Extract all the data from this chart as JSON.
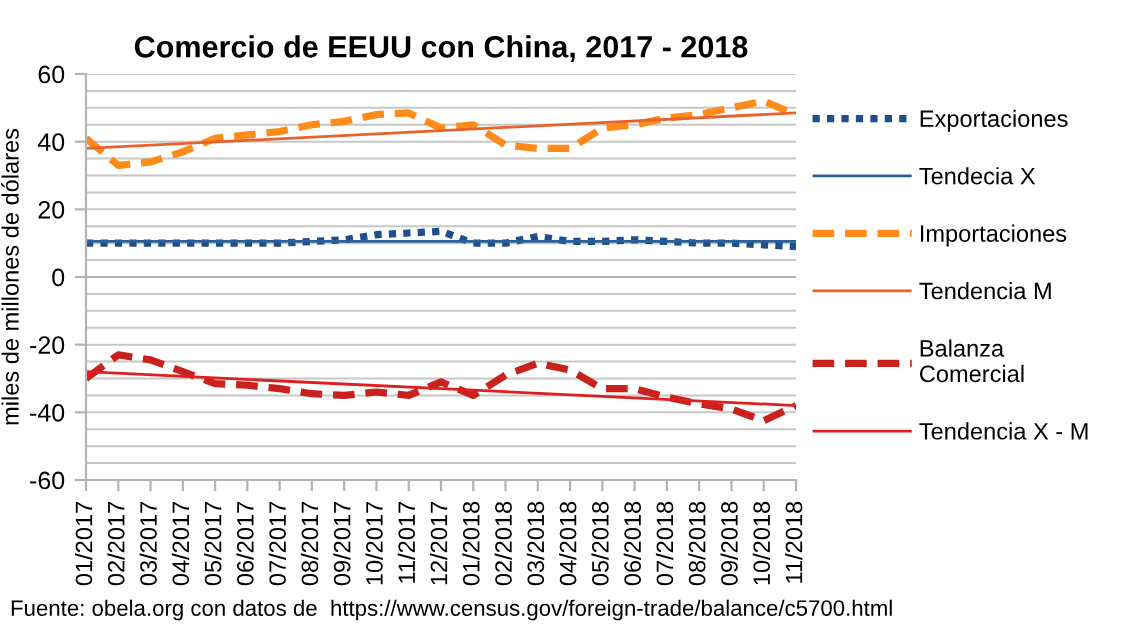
{
  "chart_data": {
    "type": "line",
    "title": "Comercio de EEUU con China, 2017 - 2018",
    "ylabel": "miles de millones de dólares",
    "categories": [
      "01/2017",
      "02/2017",
      "03/2017",
      "04/2017",
      "05/2017",
      "06/2017",
      "07/2017",
      "08/2017",
      "09/2017",
      "10/2017",
      "11/2017",
      "12/2017",
      "01/2018",
      "02/2018",
      "03/2018",
      "04/2018",
      "05/2018",
      "06/2018",
      "07/2018",
      "08/2018",
      "09/2018",
      "10/2018",
      "11/2018"
    ],
    "series": [
      {
        "name": "Exportaciones",
        "color": "#1f4e8c",
        "line_style": "dotted",
        "values": [
          10,
          10,
          10,
          10,
          10,
          10,
          10,
          10.5,
          11,
          12.5,
          13,
          13.5,
          10,
          10,
          12,
          10.5,
          10.5,
          11,
          10.5,
          10,
          10,
          9.5,
          9
        ]
      },
      {
        "name": "Tendecia X",
        "color": "#2a6099",
        "line_style": "solid",
        "x": [
          "01/2017",
          "11/2018"
        ],
        "values": [
          10.5,
          10.5
        ]
      },
      {
        "name": "Importaciones",
        "color": "#ff8c1a",
        "line_style": "dashed",
        "values": [
          41,
          33,
          34,
          37,
          41,
          42,
          43,
          45,
          46,
          48,
          48.5,
          44,
          45,
          39,
          38,
          38,
          44,
          45,
          47,
          48,
          50,
          52,
          48
        ]
      },
      {
        "name": "Tendencia M",
        "color": "#e8622c",
        "line_style": "solid",
        "x": [
          "01/2017",
          "11/2018"
        ],
        "values": [
          38,
          48.5
        ]
      },
      {
        "name": "Balanza\nComercial",
        "color": "#c9211e",
        "line_style": "dashed",
        "values": [
          -30,
          -23,
          -24.5,
          -28,
          -31.5,
          -32,
          -33,
          -34.5,
          -35,
          -34,
          -35,
          -31,
          -35,
          -29,
          -25.5,
          -27.5,
          -33,
          -33,
          -35.5,
          -37.5,
          -39,
          -42.5,
          -38
        ]
      },
      {
        "name": "Tendencia X - M",
        "color": "#e01e1e",
        "line_style": "solid",
        "x": [
          "01/2017",
          "11/2018"
        ],
        "values": [
          -28,
          -38
        ]
      }
    ],
    "ylim": [
      -60,
      60
    ],
    "yticks": [
      -60,
      {
        "value": -55,
        "label": null
      },
      {
        "value": -50,
        "label": null
      },
      {
        "value": -45,
        "label": null
      },
      -40,
      {
        "value": -35,
        "label": null
      },
      {
        "value": -30,
        "label": null
      },
      {
        "value": -25,
        "label": null
      },
      -20,
      {
        "value": -15,
        "label": null
      },
      {
        "value": -10,
        "label": null
      },
      {
        "value": -5,
        "label": null
      },
      0,
      {
        "value": 5,
        "label": null
      },
      {
        "value": 10,
        "label": null
      },
      {
        "value": 15,
        "label": null
      },
      20,
      {
        "value": 25,
        "label": null
      },
      {
        "value": 30,
        "label": null
      },
      {
        "value": 35,
        "label": null
      },
      40,
      {
        "value": 45,
        "label": null
      },
      {
        "value": 50,
        "label": null
      },
      {
        "value": 55,
        "label": null
      },
      60
    ],
    "grid": "y",
    "legend": "right",
    "marker": "none",
    "annotations": [
      "Fuente: obela.org con datos de  https://www.census.gov/foreign-trade/balance/c5700.html"
    ]
  }
}
